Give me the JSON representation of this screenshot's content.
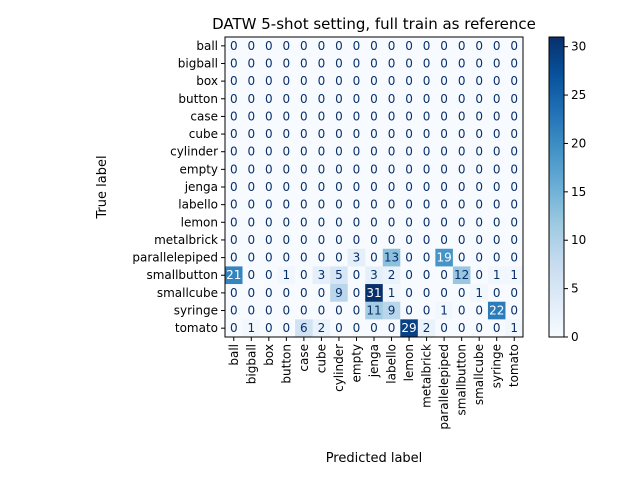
{
  "chart_data": {
    "type": "heatmap",
    "title": "DATW 5-shot setting, full train as reference",
    "xlabel": "Predicted label",
    "ylabel": "True label",
    "labels": [
      "ball",
      "bigball",
      "box",
      "button",
      "case",
      "cube",
      "cylinder",
      "empty",
      "jenga",
      "labello",
      "lemon",
      "metalbrick",
      "parallelepiped",
      "smallbutton",
      "smallcube",
      "syringe",
      "tomato"
    ],
    "matrix": [
      [
        0,
        0,
        0,
        0,
        0,
        0,
        0,
        0,
        0,
        0,
        0,
        0,
        0,
        0,
        0,
        0,
        0
      ],
      [
        0,
        0,
        0,
        0,
        0,
        0,
        0,
        0,
        0,
        0,
        0,
        0,
        0,
        0,
        0,
        0,
        0
      ],
      [
        0,
        0,
        0,
        0,
        0,
        0,
        0,
        0,
        0,
        0,
        0,
        0,
        0,
        0,
        0,
        0,
        0
      ],
      [
        0,
        0,
        0,
        0,
        0,
        0,
        0,
        0,
        0,
        0,
        0,
        0,
        0,
        0,
        0,
        0,
        0
      ],
      [
        0,
        0,
        0,
        0,
        0,
        0,
        0,
        0,
        0,
        0,
        0,
        0,
        0,
        0,
        0,
        0,
        0
      ],
      [
        0,
        0,
        0,
        0,
        0,
        0,
        0,
        0,
        0,
        0,
        0,
        0,
        0,
        0,
        0,
        0,
        0
      ],
      [
        0,
        0,
        0,
        0,
        0,
        0,
        0,
        0,
        0,
        0,
        0,
        0,
        0,
        0,
        0,
        0,
        0
      ],
      [
        0,
        0,
        0,
        0,
        0,
        0,
        0,
        0,
        0,
        0,
        0,
        0,
        0,
        0,
        0,
        0,
        0
      ],
      [
        0,
        0,
        0,
        0,
        0,
        0,
        0,
        0,
        0,
        0,
        0,
        0,
        0,
        0,
        0,
        0,
        0
      ],
      [
        0,
        0,
        0,
        0,
        0,
        0,
        0,
        0,
        0,
        0,
        0,
        0,
        0,
        0,
        0,
        0,
        0
      ],
      [
        0,
        0,
        0,
        0,
        0,
        0,
        0,
        0,
        0,
        0,
        0,
        0,
        0,
        0,
        0,
        0,
        0
      ],
      [
        0,
        0,
        0,
        0,
        0,
        0,
        0,
        0,
        0,
        0,
        0,
        0,
        0,
        0,
        0,
        0,
        0
      ],
      [
        0,
        0,
        0,
        0,
        0,
        0,
        0,
        3,
        0,
        13,
        0,
        0,
        19,
        0,
        0,
        0,
        0
      ],
      [
        21,
        0,
        0,
        1,
        0,
        3,
        5,
        0,
        3,
        2,
        0,
        0,
        0,
        12,
        0,
        1,
        1
      ],
      [
        0,
        0,
        0,
        0,
        0,
        0,
        9,
        0,
        31,
        1,
        0,
        0,
        0,
        0,
        1,
        0,
        0
      ],
      [
        0,
        0,
        0,
        0,
        0,
        0,
        0,
        0,
        11,
        9,
        0,
        0,
        1,
        0,
        0,
        22,
        0
      ],
      [
        0,
        1,
        0,
        0,
        6,
        2,
        0,
        0,
        0,
        0,
        29,
        2,
        0,
        0,
        0,
        0,
        1
      ]
    ],
    "colorbar": {
      "min": 0,
      "max": 31,
      "ticks": [
        0,
        5,
        10,
        15,
        20,
        25,
        30
      ],
      "colormap": "Blues"
    },
    "colors": {
      "low": "#f7fbff",
      "high": "#08306b",
      "dark_text_threshold": 15.5
    }
  }
}
